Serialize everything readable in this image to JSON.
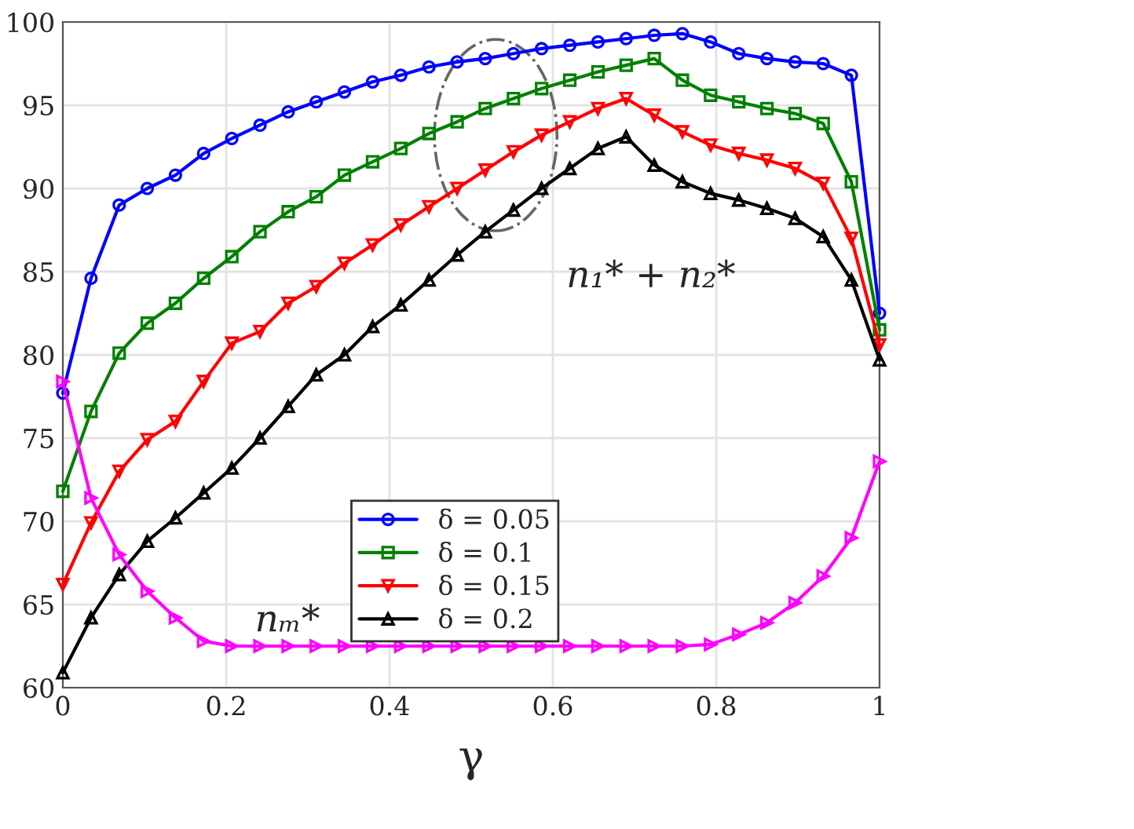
{
  "chart_data": {
    "type": "line",
    "xlabel": "γ",
    "x": [
      0,
      0.0345,
      0.069,
      0.1034,
      0.1379,
      0.1724,
      0.2069,
      0.2414,
      0.2759,
      0.3103,
      0.3448,
      0.3793,
      0.4138,
      0.4483,
      0.4828,
      0.5172,
      0.5517,
      0.5862,
      0.6207,
      0.6552,
      0.6897,
      0.7241,
      0.7586,
      0.7931,
      0.8276,
      0.8621,
      0.8966,
      0.931,
      0.9655,
      1
    ],
    "series": [
      {
        "name": "δ = 0.05",
        "color": "#0000ff",
        "marker": "circle",
        "values": [
          77.7,
          84.6,
          89.0,
          90.0,
          90.8,
          92.1,
          93.0,
          93.8,
          94.6,
          95.2,
          95.8,
          96.4,
          96.8,
          97.3,
          97.6,
          97.8,
          98.1,
          98.4,
          98.6,
          98.8,
          99.0,
          99.2,
          99.3,
          98.8,
          98.1,
          97.8,
          97.6,
          97.5,
          96.8,
          82.5
        ]
      },
      {
        "name": "δ = 0.1",
        "color": "#008000",
        "marker": "square",
        "values": [
          71.8,
          76.6,
          80.1,
          81.9,
          83.1,
          84.6,
          85.9,
          87.4,
          88.6,
          89.5,
          90.8,
          91.6,
          92.4,
          93.3,
          94.0,
          94.8,
          95.4,
          96.0,
          96.5,
          97.0,
          97.4,
          97.8,
          96.5,
          95.6,
          95.2,
          94.8,
          94.5,
          93.9,
          90.4,
          81.5
        ]
      },
      {
        "name": "δ = 0.15",
        "color": "#ff0000",
        "marker": "triangle_down",
        "values": [
          66.2,
          69.9,
          73.0,
          74.9,
          76.0,
          78.4,
          80.7,
          81.4,
          83.1,
          84.1,
          85.5,
          86.6,
          87.8,
          88.9,
          90.0,
          91.1,
          92.2,
          93.2,
          94.0,
          94.8,
          95.4,
          94.4,
          93.4,
          92.6,
          92.1,
          91.7,
          91.2,
          90.3,
          87.0,
          80.6
        ]
      },
      {
        "name": "δ = 0.2",
        "color": "#000000",
        "marker": "triangle",
        "values": [
          60.9,
          64.2,
          66.8,
          68.8,
          70.2,
          71.7,
          73.2,
          75.0,
          76.9,
          78.8,
          80.0,
          81.7,
          83.0,
          84.5,
          86.0,
          87.4,
          88.7,
          90.0,
          91.2,
          92.4,
          93.1,
          91.4,
          90.4,
          89.7,
          89.3,
          88.8,
          88.2,
          87.1,
          84.5,
          79.7
        ]
      },
      {
        "color": "#ff00ff",
        "marker": "triangle_right",
        "values": [
          78.4,
          71.4,
          68.0,
          65.8,
          64.2,
          62.8,
          62.5,
          62.5,
          62.5,
          62.5,
          62.5,
          62.5,
          62.5,
          62.5,
          62.5,
          62.5,
          62.5,
          62.5,
          62.5,
          62.5,
          62.5,
          62.5,
          62.5,
          62.6,
          63.2,
          63.9,
          65.1,
          66.7,
          69.0,
          73.6
        ]
      }
    ],
    "annotations": [
      "n₁* + n₂*",
      "nₘ*"
    ],
    "xlim": [
      0,
      1
    ],
    "xticks": [
      0,
      0.2,
      0.4,
      0.6,
      0.8,
      1
    ],
    "ylim": [
      60,
      100
    ],
    "yticks": [
      60,
      65,
      70,
      75,
      80,
      85,
      90,
      95,
      100
    ],
    "grid": true,
    "legend": "bottom",
    "line_style": "solid"
  }
}
